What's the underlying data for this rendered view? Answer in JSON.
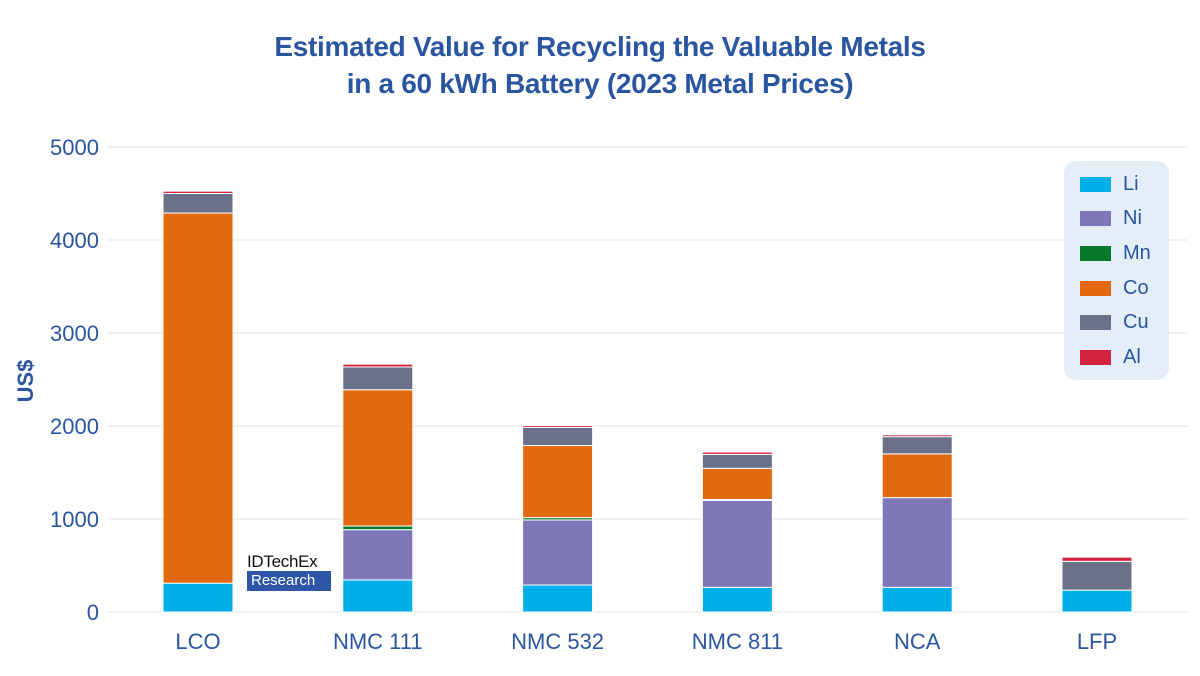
{
  "title_line1": "Estimated Value for Recycling the Valuable Metals",
  "title_line2": "in a 60 kWh Battery (2023 Metal Prices)",
  "watermark": {
    "line1": "IDTechEx",
    "line2": "Research"
  },
  "colors": {
    "Li": "#00aee8",
    "Ni": "#7f78b8",
    "Mn": "#087a2e",
    "Co": "#e2690f",
    "Cu": "#6a7289",
    "Al": "#d2233f",
    "text": "#2a55a0",
    "grid": "#e6e6e6",
    "legend_bg": "#e4eef8"
  },
  "chart_data": {
    "type": "bar",
    "stacked": true,
    "title": "Estimated Value for Recycling the Valuable Metals in a 60 kWh Battery (2023 Metal Prices)",
    "xlabel": "",
    "ylabel": "US$",
    "ylim": [
      0,
      5000
    ],
    "yticks": [
      0,
      1000,
      2000,
      3000,
      4000,
      5000
    ],
    "grid": true,
    "legend_position": "top-right",
    "categories": [
      "LCO",
      "NMC 111",
      "NMC 532",
      "NMC 811",
      "NCA",
      "LFP"
    ],
    "series": [
      {
        "name": "Li",
        "values": [
          310,
          345,
          290,
          265,
          265,
          235
        ]
      },
      {
        "name": "Ni",
        "values": [
          0,
          540,
          700,
          935,
          965,
          0
        ]
      },
      {
        "name": "Mn",
        "values": [
          0,
          40,
          25,
          10,
          0,
          0
        ]
      },
      {
        "name": "Co",
        "values": [
          3980,
          1465,
          775,
          335,
          470,
          0
        ]
      },
      {
        "name": "Cu",
        "values": [
          210,
          245,
          195,
          150,
          185,
          310
        ]
      },
      {
        "name": "Al",
        "values": [
          25,
          30,
          20,
          25,
          20,
          45
        ]
      }
    ]
  }
}
